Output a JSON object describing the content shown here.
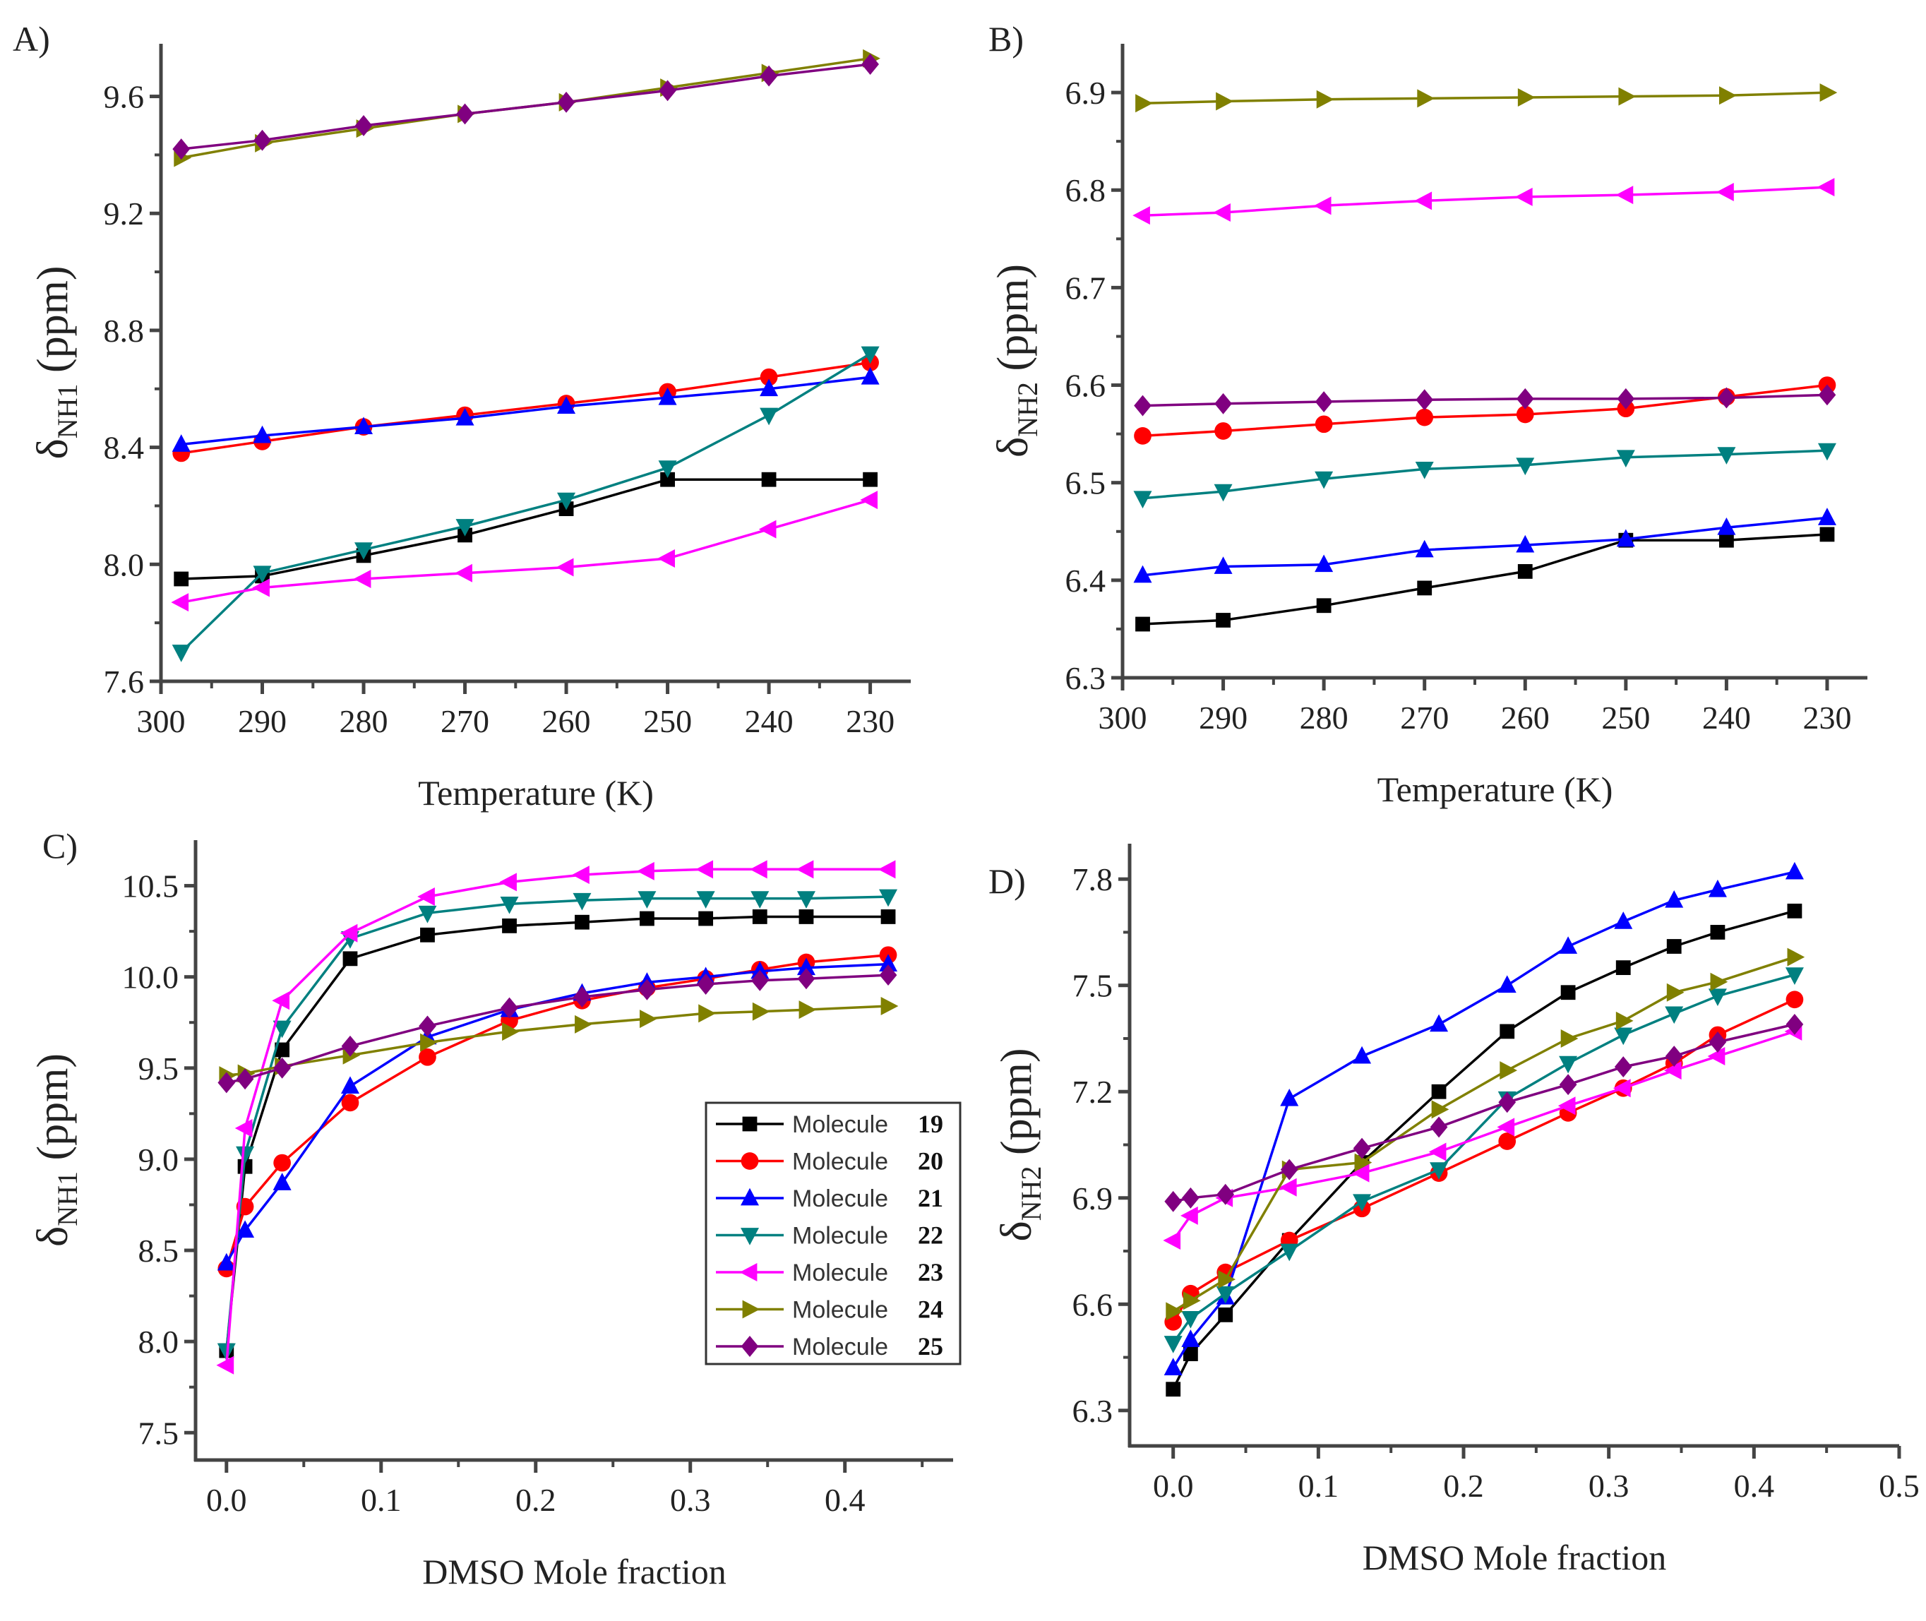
{
  "figure": {
    "series_style": [
      {
        "name": "Molecule",
        "id": "19",
        "color": "#000000",
        "marker": "square"
      },
      {
        "name": "Molecule",
        "id": "20",
        "color": "#ff0000",
        "marker": "circle"
      },
      {
        "name": "Molecule",
        "id": "21",
        "color": "#0000ff",
        "marker": "triangle-up"
      },
      {
        "name": "Molecule",
        "id": "22",
        "color": "#008080",
        "marker": "triangle-down"
      },
      {
        "name": "Molecule",
        "id": "23",
        "color": "#ff00ff",
        "marker": "triangle-left"
      },
      {
        "name": "Molecule",
        "id": "24",
        "color": "#808000",
        "marker": "triangle-right"
      },
      {
        "name": "Molecule",
        "id": "25",
        "color": "#800080",
        "marker": "diamond"
      }
    ]
  },
  "chart_data": [
    {
      "panel": "A)",
      "type": "line",
      "title": "",
      "xlabel": "Temperature (K)",
      "ylabel": "δNH1 (ppm)",
      "ylabel_main": "δ",
      "ylabel_sub": "NH1",
      "ylabel_unit": "(ppm)",
      "xlim": [
        300,
        226
      ],
      "ylim": [
        7.6,
        9.78
      ],
      "xticks": [
        300,
        290,
        280,
        270,
        260,
        250,
        240,
        230
      ],
      "yticks": [
        7.6,
        8.0,
        8.4,
        8.8,
        9.2,
        9.6
      ],
      "ytick_labels": [
        "7.6",
        "8.0",
        "8.4",
        "8.8",
        "9.2",
        "9.6"
      ],
      "x": [
        298,
        290,
        280,
        270,
        260,
        250,
        240,
        230
      ],
      "series": [
        {
          "name": "Molecule 19",
          "values": [
            7.95,
            7.96,
            8.03,
            8.1,
            8.19,
            8.29,
            8.29,
            8.29
          ]
        },
        {
          "name": "Molecule 20",
          "values": [
            8.38,
            8.42,
            8.47,
            8.51,
            8.55,
            8.59,
            8.64,
            8.69
          ]
        },
        {
          "name": "Molecule 21",
          "values": [
            8.41,
            8.44,
            8.47,
            8.5,
            8.54,
            8.57,
            8.6,
            8.64
          ]
        },
        {
          "name": "Molecule 22",
          "values": [
            7.7,
            7.97,
            8.05,
            8.13,
            8.22,
            8.33,
            8.51,
            8.72
          ]
        },
        {
          "name": "Molecule 23",
          "values": [
            7.87,
            7.92,
            7.95,
            7.97,
            7.99,
            8.02,
            8.12,
            8.22
          ]
        },
        {
          "name": "Molecule 24",
          "values": [
            9.39,
            9.44,
            9.49,
            9.54,
            9.58,
            9.63,
            9.68,
            9.73
          ]
        },
        {
          "name": "Molecule 25",
          "values": [
            9.42,
            9.45,
            9.5,
            9.54,
            9.58,
            9.62,
            9.67,
            9.71
          ]
        }
      ],
      "grid": false,
      "legend": "none"
    },
    {
      "panel": "B)",
      "type": "line",
      "title": "",
      "xlabel": "Temperature (K)",
      "ylabel": "δNH2 (ppm)",
      "ylabel_main": "δ",
      "ylabel_sub": "NH2",
      "ylabel_unit": "(ppm)",
      "xlim": [
        300,
        226
      ],
      "ylim": [
        6.3,
        6.95
      ],
      "xticks": [
        300,
        290,
        280,
        270,
        260,
        250,
        240,
        230
      ],
      "yticks": [
        6.3,
        6.4,
        6.5,
        6.6,
        6.7,
        6.8,
        6.9
      ],
      "ytick_labels": [
        "6.3",
        "6.4",
        "6.5",
        "6.6",
        "6.7",
        "6.8",
        "6.9"
      ],
      "x": [
        298,
        290,
        280,
        270,
        260,
        250,
        240,
        230
      ],
      "series": [
        {
          "name": "Molecule 19",
          "values": [
            6.355,
            6.359,
            6.374,
            6.392,
            6.409,
            6.441,
            6.441,
            6.447
          ]
        },
        {
          "name": "Molecule 20",
          "values": [
            6.548,
            6.553,
            6.56,
            6.567,
            6.57,
            6.576,
            6.588,
            6.6
          ]
        },
        {
          "name": "Molecule 21",
          "values": [
            6.405,
            6.414,
            6.416,
            6.431,
            6.436,
            6.442,
            6.454,
            6.464
          ]
        },
        {
          "name": "Molecule 22",
          "values": [
            6.484,
            6.491,
            6.504,
            6.514,
            6.518,
            6.526,
            6.529,
            6.533
          ]
        },
        {
          "name": "Molecule 23",
          "values": [
            6.774,
            6.777,
            6.784,
            6.789,
            6.793,
            6.795,
            6.798,
            6.803
          ]
        },
        {
          "name": "Molecule 24",
          "values": [
            6.889,
            6.891,
            6.893,
            6.894,
            6.895,
            6.896,
            6.897,
            6.9
          ]
        },
        {
          "name": "Molecule 25",
          "values": [
            6.579,
            6.581,
            6.583,
            6.585,
            6.586,
            6.586,
            6.587,
            6.59
          ]
        }
      ],
      "grid": false,
      "legend": "none"
    },
    {
      "panel": "C)",
      "type": "line",
      "title": "",
      "xlabel": "DMSO Mole fraction",
      "ylabel": "δNH1 (ppm)",
      "ylabel_main": "δ",
      "ylabel_sub": "NH1",
      "ylabel_unit": "(ppm)",
      "xlim": [
        -0.02,
        0.47
      ],
      "ylim": [
        7.35,
        10.75
      ],
      "xticks": [
        0.0,
        0.1,
        0.2,
        0.3,
        0.4
      ],
      "xtick_labels": [
        "0.0",
        "0.1",
        "0.2",
        "0.3",
        "0.4"
      ],
      "yticks": [
        7.5,
        8.0,
        8.5,
        9.0,
        9.5,
        10.0,
        10.5
      ],
      "ytick_labels": [
        "7.5",
        "8.0",
        "8.5",
        "9.0",
        "9.5",
        "10.0",
        "10.5"
      ],
      "x": [
        0.0,
        0.012,
        0.036,
        0.08,
        0.13,
        0.183,
        0.23,
        0.272,
        0.31,
        0.345,
        0.375,
        0.428
      ],
      "series": [
        {
          "name": "Molecule 19",
          "values": [
            7.95,
            8.96,
            9.6,
            10.1,
            10.23,
            10.28,
            10.3,
            10.32,
            10.32,
            10.33,
            10.33,
            10.33
          ]
        },
        {
          "name": "Molecule 20",
          "values": [
            8.4,
            8.74,
            8.98,
            9.31,
            9.56,
            9.76,
            9.87,
            9.94,
            9.99,
            10.04,
            10.08,
            10.12
          ]
        },
        {
          "name": "Molecule 21",
          "values": [
            8.43,
            8.61,
            8.87,
            9.4,
            9.67,
            9.82,
            9.91,
            9.97,
            10.0,
            10.03,
            10.05,
            10.07
          ]
        },
        {
          "name": "Molecule 22",
          "values": [
            7.95,
            9.03,
            9.72,
            10.21,
            10.35,
            10.4,
            10.42,
            10.43,
            10.43,
            10.43,
            10.43,
            10.44
          ]
        },
        {
          "name": "Molecule 23",
          "values": [
            7.87,
            9.17,
            9.87,
            10.24,
            10.44,
            10.52,
            10.56,
            10.58,
            10.59,
            10.59,
            10.59,
            10.59
          ]
        },
        {
          "name": "Molecule 24",
          "values": [
            9.46,
            9.47,
            9.51,
            9.57,
            9.64,
            9.7,
            9.74,
            9.77,
            9.8,
            9.81,
            9.82,
            9.84
          ]
        },
        {
          "name": "Molecule 25",
          "values": [
            9.42,
            9.44,
            9.5,
            9.62,
            9.73,
            9.83,
            9.89,
            9.93,
            9.96,
            9.98,
            9.99,
            10.01
          ]
        }
      ],
      "grid": false,
      "legend": "right, inside plot (below middle)"
    },
    {
      "panel": "D)",
      "type": "line",
      "title": "",
      "xlabel": "DMSO Mole fraction",
      "ylabel": "δNH2 (ppm)",
      "ylabel_main": "δ",
      "ylabel_sub": "NH2",
      "ylabel_unit": "(ppm)",
      "xlim": [
        -0.03,
        0.5
      ],
      "ylim": [
        6.2,
        7.9
      ],
      "xticks": [
        0.0,
        0.1,
        0.2,
        0.3,
        0.4,
        0.5
      ],
      "xtick_labels": [
        "0.0",
        "0.1",
        "0.2",
        "0.3",
        "0.4",
        "0.5"
      ],
      "yticks": [
        6.3,
        6.6,
        6.9,
        7.2,
        7.5,
        7.8
      ],
      "ytick_labels": [
        "6.3",
        "6.6",
        "6.9",
        "7.2",
        "7.5",
        "7.8"
      ],
      "x": [
        0.0,
        0.012,
        0.036,
        0.08,
        0.13,
        0.183,
        0.23,
        0.272,
        0.31,
        0.345,
        0.375,
        0.428
      ],
      "series": [
        {
          "name": "Molecule 19",
          "values": [
            6.36,
            6.46,
            6.57,
            6.78,
            7.0,
            7.2,
            7.37,
            7.48,
            7.55,
            7.61,
            7.65,
            7.71
          ]
        },
        {
          "name": "Molecule 20",
          "values": [
            6.55,
            6.63,
            6.69,
            6.78,
            6.87,
            6.97,
            7.06,
            7.14,
            7.21,
            7.28,
            7.36,
            7.46
          ]
        },
        {
          "name": "Molecule 21",
          "values": [
            6.42,
            6.5,
            6.62,
            7.18,
            7.3,
            7.39,
            7.5,
            7.61,
            7.68,
            7.74,
            7.77,
            7.82
          ]
        },
        {
          "name": "Molecule 22",
          "values": [
            6.49,
            6.56,
            6.63,
            6.75,
            6.89,
            6.98,
            7.18,
            7.28,
            7.36,
            7.42,
            7.47,
            7.53
          ]
        },
        {
          "name": "Molecule 23",
          "values": [
            6.78,
            6.85,
            6.9,
            6.93,
            6.97,
            7.03,
            7.1,
            7.16,
            7.21,
            7.26,
            7.3,
            7.37
          ]
        },
        {
          "name": "Molecule 24",
          "values": [
            6.58,
            6.61,
            6.67,
            6.98,
            7.0,
            7.15,
            7.26,
            7.35,
            7.4,
            7.48,
            7.51,
            7.58
          ]
        },
        {
          "name": "Molecule 25",
          "values": [
            6.89,
            6.9,
            6.91,
            6.98,
            7.04,
            7.1,
            7.17,
            7.22,
            7.27,
            7.3,
            7.34,
            7.39
          ]
        }
      ],
      "grid": false,
      "legend": "none"
    }
  ]
}
